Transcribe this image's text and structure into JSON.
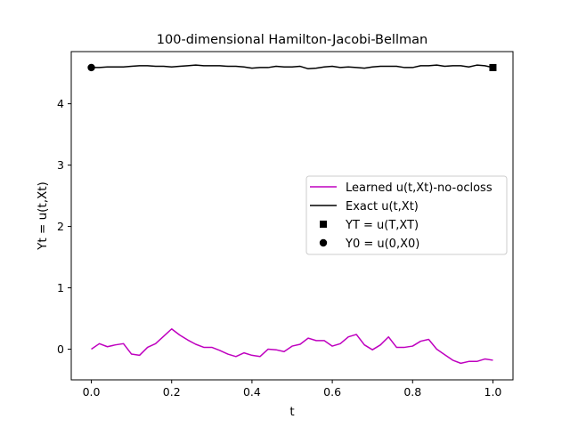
{
  "chart_data": {
    "type": "line",
    "title": "100-dimensional Hamilton-Jacobi-Bellman",
    "xlabel": "t",
    "ylabel": "Yt = u(t,Xt)",
    "xlim": [
      -0.05,
      1.05
    ],
    "ylim": [
      -0.5,
      4.85
    ],
    "xticks": [
      0.0,
      0.2,
      0.4,
      0.6,
      0.8,
      1.0
    ],
    "xtick_labels": [
      "0.0",
      "0.2",
      "0.4",
      "0.6",
      "0.8",
      "1.0"
    ],
    "yticks": [
      0,
      1,
      2,
      3,
      4
    ],
    "ytick_labels": [
      "0",
      "1",
      "2",
      "3",
      "4"
    ],
    "grid": false,
    "legend_position": "center-right",
    "series": [
      {
        "name": "Learned u(t,Xt)-no-ocloss",
        "kind": "line",
        "color": "#bf00bf",
        "x": [
          0.0,
          0.02,
          0.04,
          0.06,
          0.08,
          0.1,
          0.12,
          0.14,
          0.16,
          0.18,
          0.2,
          0.22,
          0.24,
          0.26,
          0.28,
          0.3,
          0.32,
          0.34,
          0.36,
          0.38,
          0.4,
          0.42,
          0.44,
          0.46,
          0.48,
          0.5,
          0.52,
          0.54,
          0.56,
          0.58,
          0.6,
          0.62,
          0.64,
          0.66,
          0.68,
          0.7,
          0.72,
          0.74,
          0.76,
          0.78,
          0.8,
          0.82,
          0.84,
          0.86,
          0.88,
          0.9,
          0.92,
          0.94,
          0.96,
          0.98,
          1.0
        ],
        "y": [
          0.0,
          0.09,
          0.04,
          0.07,
          0.09,
          -0.08,
          -0.1,
          0.03,
          0.09,
          0.21,
          0.33,
          0.23,
          0.15,
          0.08,
          0.03,
          0.03,
          -0.02,
          -0.08,
          -0.12,
          -0.06,
          -0.1,
          -0.12,
          0.0,
          -0.01,
          -0.04,
          0.05,
          0.08,
          0.18,
          0.14,
          0.14,
          0.05,
          0.09,
          0.2,
          0.24,
          0.07,
          -0.01,
          0.07,
          0.2,
          0.03,
          0.03,
          0.05,
          0.13,
          0.16,
          0.0,
          -0.09,
          -0.18,
          -0.23,
          -0.2,
          -0.2,
          -0.16,
          -0.18
        ]
      },
      {
        "name": "Exact u(t,Xt)",
        "kind": "line",
        "color": "#000000",
        "x": [
          0.0,
          0.02,
          0.04,
          0.06,
          0.08,
          0.1,
          0.12,
          0.14,
          0.16,
          0.18,
          0.2,
          0.22,
          0.24,
          0.26,
          0.28,
          0.3,
          0.32,
          0.34,
          0.36,
          0.38,
          0.4,
          0.42,
          0.44,
          0.46,
          0.48,
          0.5,
          0.52,
          0.54,
          0.56,
          0.58,
          0.6,
          0.62,
          0.64,
          0.66,
          0.68,
          0.7,
          0.72,
          0.74,
          0.76,
          0.78,
          0.8,
          0.82,
          0.84,
          0.86,
          0.88,
          0.9,
          0.92,
          0.94,
          0.96,
          0.98,
          1.0
        ],
        "y": [
          4.59,
          4.59,
          4.6,
          4.6,
          4.6,
          4.61,
          4.62,
          4.62,
          4.61,
          4.61,
          4.6,
          4.61,
          4.62,
          4.63,
          4.62,
          4.62,
          4.62,
          4.61,
          4.61,
          4.6,
          4.58,
          4.59,
          4.59,
          4.61,
          4.6,
          4.6,
          4.61,
          4.57,
          4.58,
          4.6,
          4.61,
          4.59,
          4.6,
          4.59,
          4.58,
          4.6,
          4.61,
          4.61,
          4.61,
          4.59,
          4.59,
          4.62,
          4.62,
          4.63,
          4.61,
          4.62,
          4.62,
          4.6,
          4.63,
          4.62,
          4.59
        ]
      },
      {
        "name": "YT = u(T,XT)",
        "kind": "marker",
        "marker": "square",
        "color": "#000000",
        "x": [
          1.0
        ],
        "y": [
          4.59
        ]
      },
      {
        "name": "Y0 = u(0,X0)",
        "kind": "marker",
        "marker": "circle",
        "color": "#000000",
        "x": [
          0.0
        ],
        "y": [
          4.59
        ]
      }
    ]
  }
}
